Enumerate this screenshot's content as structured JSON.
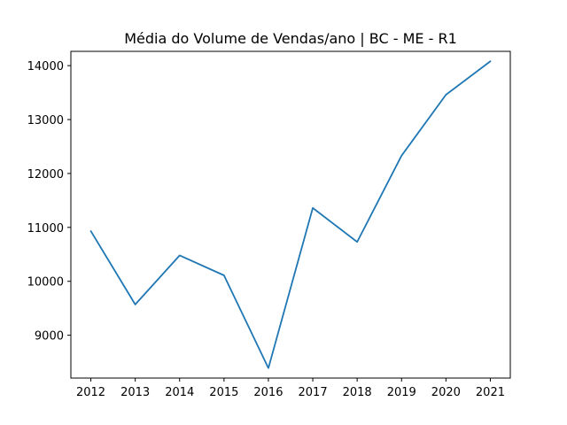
{
  "chart_data": {
    "type": "line",
    "title": "Média do Volume de Vendas/ano | BC - ME - R1",
    "xlabel": "",
    "ylabel": "",
    "x": [
      2012,
      2013,
      2014,
      2015,
      2016,
      2017,
      2018,
      2019,
      2020,
      2021
    ],
    "x_tick_labels": [
      "2012",
      "2013",
      "2014",
      "2015",
      "2016",
      "2017",
      "2018",
      "2019",
      "2020",
      "2021"
    ],
    "values": [
      10930,
      9570,
      10480,
      10110,
      8390,
      11360,
      10730,
      12330,
      13460,
      14080
    ],
    "y_ticks": [
      9000,
      10000,
      11000,
      12000,
      13000,
      14000
    ],
    "y_tick_labels": [
      "9000",
      "10000",
      "11000",
      "12000",
      "13000",
      "14000"
    ],
    "xlim": [
      2011.55,
      2021.45
    ],
    "ylim": [
      8205,
      14265
    ],
    "grid": false,
    "line_color": "#1f77b4",
    "axis_color": "#000000"
  }
}
